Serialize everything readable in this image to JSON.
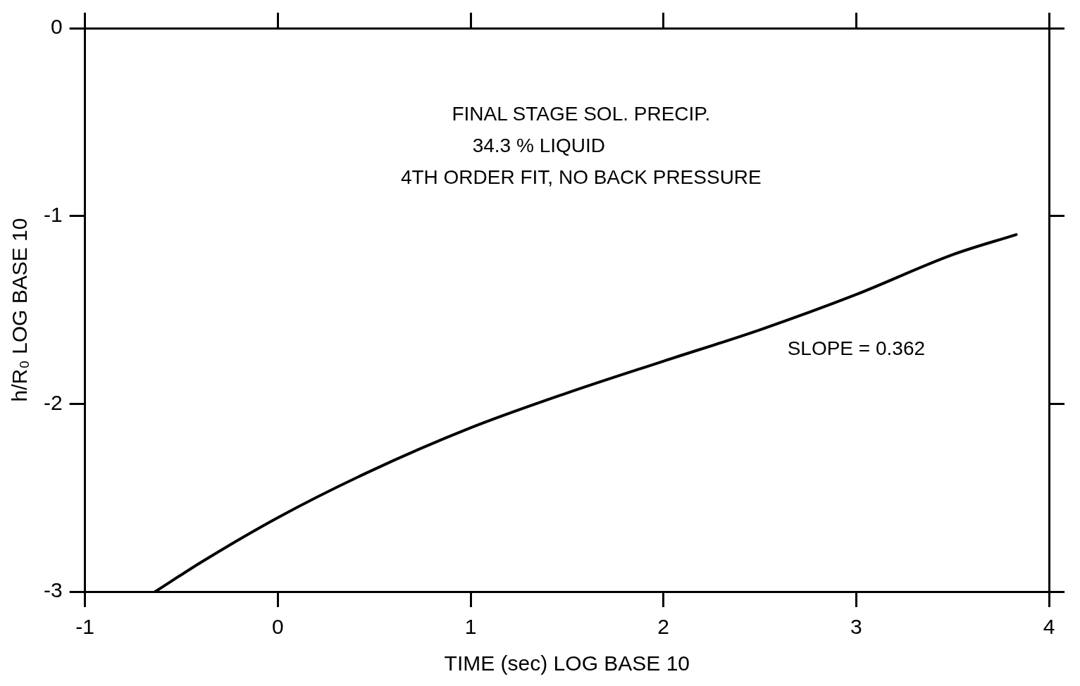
{
  "chart_data": {
    "type": "line",
    "xlabel": "TIME (sec) LOG BASE 10",
    "ylabel": "h/R₀ LOG BASE 10",
    "annotations": [
      "FINAL STAGE SOL. PRECIP.",
      "34.3 % LIQUID",
      "4TH ORDER FIT, NO BACK PRESSURE",
      "SLOPE = 0.362"
    ],
    "series": [
      {
        "color": "#000000",
        "x": [
          -0.636,
          -0.387,
          0,
          0.467,
          1,
          1.499,
          2,
          2.5,
          3,
          3.5,
          3.83
        ],
        "values": [
          -3,
          -2.837,
          -2.606,
          -2.365,
          -2.128,
          -1.943,
          -1.773,
          -1.606,
          -1.418,
          -1.206,
          -1.099
        ]
      }
    ],
    "xlim": [
      -1,
      4
    ],
    "xticks": [
      -1,
      0,
      1,
      2,
      3,
      4
    ],
    "ylim": [
      -3,
      0
    ],
    "yticks": [
      -3,
      -2,
      -1,
      0
    ],
    "legend": false,
    "marker": "none",
    "line_style": "solid"
  }
}
